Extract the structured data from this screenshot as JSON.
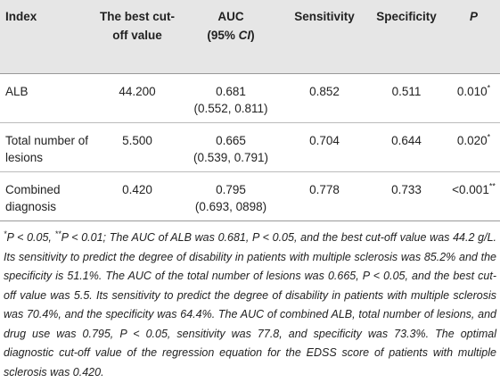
{
  "table": {
    "header": [
      "Index",
      "The best cut-off value",
      [
        "AUC",
        "(95% ",
        "CI",
        ")"
      ],
      "Sensitivity",
      "Specificity",
      "P"
    ],
    "rows": [
      [
        "ALB",
        "44.200",
        [
          "0.681",
          "(0.552, 0.811)"
        ],
        "0.852",
        "0.511",
        [
          "0.010",
          "*"
        ]
      ],
      [
        "Total number of lesions",
        "5.500",
        [
          "0.665",
          "(0.539, 0.791)"
        ],
        "0.704",
        "0.644",
        [
          "0.020",
          "*"
        ]
      ],
      [
        "Combined diagnosis",
        "0.420",
        [
          "0.795",
          "(0.693, 0898)"
        ],
        "0.778",
        "0.733",
        [
          "<0.001",
          "**"
        ]
      ]
    ]
  },
  "footnote": [
    "*",
    "P < 0.05, ",
    "**",
    "P < 0.01; The AUC of ALB was 0.681, P < 0.05, and the best cut-off value was 44.2 g/L. Its sensitivity to predict the degree of disability in patients with multiple sclerosis was 85.2% and the specificity is 51.1%. The AUC of the total number of lesions was 0.665, P < 0.05, and the best cut-off value was 5.5. Its sensitivity to predict the degree of disability in patients with multiple sclerosis was 70.4%, and the specificity was 64.4%. The AUC of combined ALB, total number of lesions, and drug use was 0.795, P < 0.05, sensitivity was 77.8, and specificity was 73.3%. The optimal diagnostic cut-off value of the regression equation for the EDSS score of patients with multiple sclerosis was 0.420."
  ]
}
